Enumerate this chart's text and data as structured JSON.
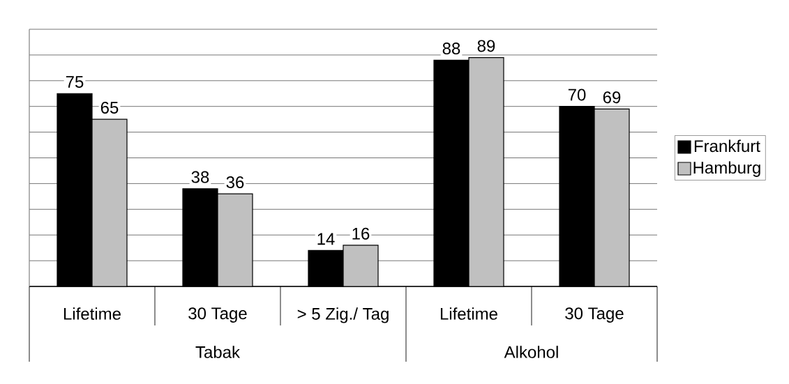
{
  "chart_data": {
    "type": "bar",
    "categories": [
      "Lifetime",
      "30 Tage",
      "> 5 Zig./ Tag",
      "Lifetime",
      "30 Tage"
    ],
    "series": [
      {
        "name": "Frankfurt",
        "color": "#000000",
        "values": [
          75,
          38,
          14,
          88,
          70
        ]
      },
      {
        "name": "Hamburg",
        "color": "#c0c0c0",
        "values": [
          65,
          36,
          16,
          89,
          69
        ]
      }
    ],
    "annotations": [
      "Tabak",
      "Alkohol"
    ],
    "ylim": [
      0,
      100
    ],
    "yticks": [
      {
        "value": 0,
        "label": null
      },
      {
        "value": 10,
        "label": null
      },
      {
        "value": 20,
        "label": null
      },
      {
        "value": 30,
        "label": null
      },
      {
        "value": 40,
        "label": null
      },
      {
        "value": 50,
        "label": null
      },
      {
        "value": 60,
        "label": null
      },
      {
        "value": 70,
        "label": null
      },
      {
        "value": 80,
        "label": null
      },
      {
        "value": 90,
        "label": null
      },
      {
        "value": 100,
        "label": null
      }
    ],
    "tick_labels": "x",
    "grid": "y",
    "legend": "right",
    "data_labels": true
  }
}
